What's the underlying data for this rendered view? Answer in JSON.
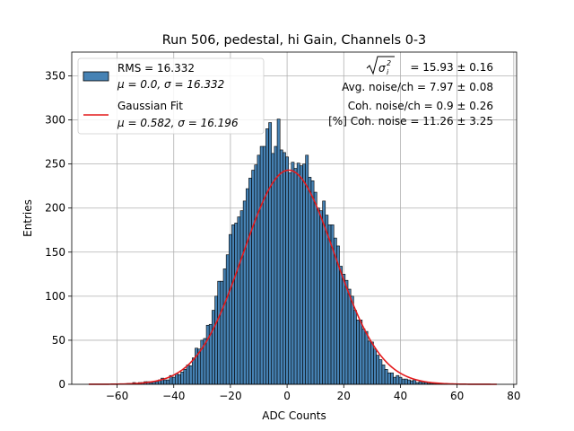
{
  "chart_data": {
    "type": "bar",
    "title": "Run 506, pedestal, hi Gain, Channels 0-3",
    "xlabel": "ADC Counts",
    "ylabel": "Entries",
    "xlim": [
      -76,
      81
    ],
    "ylim": [
      0,
      377
    ],
    "xticks": [
      -60,
      -40,
      -20,
      0,
      20,
      40,
      60,
      80
    ],
    "yticks": [
      0,
      50,
      100,
      150,
      200,
      250,
      300,
      350
    ],
    "xtick_labels": [
      "−60",
      "−40",
      "−20",
      "0",
      "20",
      "40",
      "60",
      "80"
    ],
    "ytick_labels": [
      "0",
      "50",
      "100",
      "150",
      "200",
      "250",
      "300",
      "350"
    ],
    "grid": true,
    "bin_width": 1,
    "histogram": {
      "name": "RMS = 16.332",
      "name_line2": "μ = 0.0, σ = 16.332",
      "color": "#4682b4",
      "x": [
        -56,
        -55,
        -54,
        -53,
        -52,
        -51,
        -50,
        -49,
        -48,
        -47,
        -46,
        -45,
        -44,
        -43,
        -42,
        -41,
        -40,
        -39,
        -38,
        -37,
        -36,
        -35,
        -34,
        -33,
        -32,
        -31,
        -30,
        -29,
        -28,
        -27,
        -26,
        -25,
        -24,
        -23,
        -22,
        -21,
        -20,
        -19,
        -18,
        -17,
        -16,
        -15,
        -14,
        -13,
        -12,
        -11,
        -10,
        -9,
        -8,
        -7,
        -6,
        -5,
        -4,
        -3,
        -2,
        -1,
        0,
        1,
        2,
        3,
        4,
        5,
        6,
        7,
        8,
        9,
        10,
        11,
        12,
        13,
        14,
        15,
        16,
        17,
        18,
        19,
        20,
        21,
        22,
        23,
        24,
        25,
        26,
        27,
        28,
        29,
        30,
        31,
        32,
        33,
        34,
        35,
        36,
        37,
        38,
        39,
        40,
        41,
        42,
        43,
        44,
        45,
        46,
        47,
        48,
        49,
        50,
        51,
        52,
        53,
        54,
        55,
        56
      ],
      "counts": [
        1,
        1,
        2,
        1,
        2,
        2,
        3,
        3,
        2,
        3,
        3,
        5,
        7,
        5,
        5,
        10,
        8,
        12,
        11,
        14,
        17,
        22,
        21,
        30,
        41,
        40,
        50,
        52,
        67,
        68,
        84,
        100,
        117,
        117,
        131,
        147,
        170,
        181,
        183,
        190,
        197,
        208,
        222,
        234,
        243,
        249,
        260,
        270,
        270,
        290,
        297,
        262,
        270,
        301,
        266,
        263,
        258,
        240,
        252,
        245,
        251,
        248,
        250,
        260,
        235,
        231,
        218,
        200,
        197,
        208,
        192,
        181,
        181,
        166,
        157,
        134,
        125,
        118,
        108,
        100,
        84,
        73,
        73,
        63,
        60,
        49,
        48,
        40,
        33,
        28,
        22,
        17,
        13,
        13,
        8,
        10,
        8,
        6,
        6,
        5,
        4,
        5,
        2,
        3,
        2,
        2,
        1,
        1,
        1,
        1,
        1,
        1,
        1
      ]
    },
    "fit": {
      "name": "Gaussian Fit",
      "name_line2": "μ = 0.582, σ = 16.196",
      "color": "#e41a1c",
      "mu": 0.582,
      "sigma": 16.196,
      "amplitude": 243,
      "x_range": [
        -70,
        74
      ]
    },
    "legend_position": "upper left",
    "annotations": {
      "line1_prefix": "= 15.93 ± 0.16",
      "line2": "Avg. noise/ch = 7.97 ± 0.08",
      "line3": "Coh. noise/ch = 0.9 ± 0.26",
      "line4": "[%] Coh. noise = 11.26 ± 3.25"
    }
  }
}
